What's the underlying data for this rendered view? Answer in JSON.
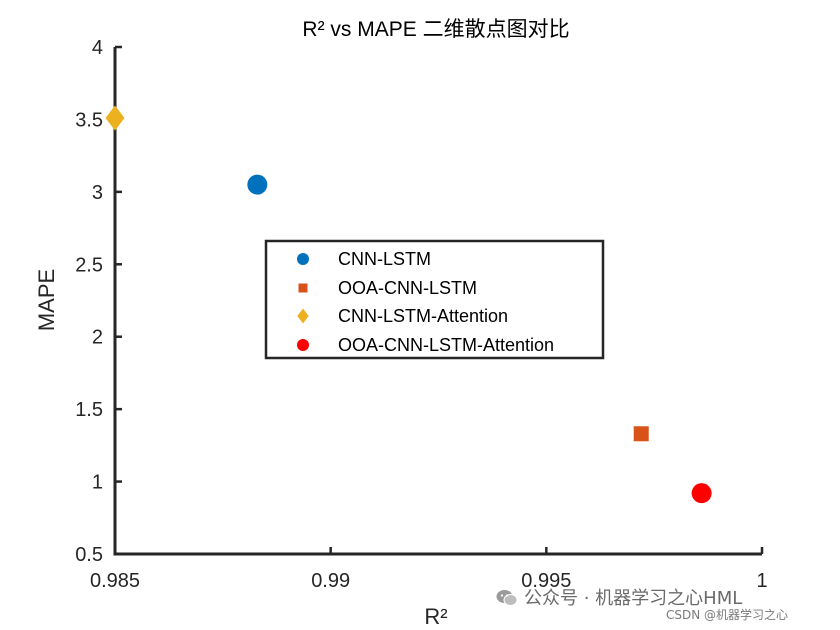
{
  "chart_data": {
    "type": "scatter",
    "title": "R² vs MAPE 二维散点图对比",
    "xlabel": "R²",
    "ylabel": "MAPE",
    "xlim": [
      0.985,
      1.0
    ],
    "ylim": [
      0.5,
      4.0
    ],
    "xticks": [
      0.985,
      0.99,
      0.995,
      1.0
    ],
    "xtick_labels": [
      "0.985",
      "0.99",
      "0.995",
      "1"
    ],
    "yticks": [
      0.5,
      1,
      1.5,
      2,
      2.5,
      3,
      3.5,
      4
    ],
    "ytick_labels": [
      "0.5",
      "1",
      "1.5",
      "2",
      "2.5",
      "3",
      "3.5",
      "4"
    ],
    "grid": false,
    "legend_position": "center",
    "series": [
      {
        "name": "CNN-LSTM",
        "x": [
          0.9883
        ],
        "y": [
          3.05
        ],
        "marker": "circle",
        "color": "#0072BD"
      },
      {
        "name": "OOA-CNN-LSTM",
        "x": [
          0.9972
        ],
        "y": [
          1.33
        ],
        "marker": "square",
        "color": "#D95319"
      },
      {
        "name": "CNN-LSTM-Attention",
        "x": [
          0.985
        ],
        "y": [
          3.51
        ],
        "marker": "diamond",
        "color": "#EDB120"
      },
      {
        "name": "OOA-CNN-LSTM-Attention",
        "x": [
          0.9986
        ],
        "y": [
          0.92
        ],
        "marker": "circle",
        "color": "#FF0000"
      }
    ]
  },
  "watermark": {
    "icon": "wechat-icon",
    "text": "公众号 · 机器学习之心HML",
    "secondary": "CSDN @机器学习之心"
  }
}
